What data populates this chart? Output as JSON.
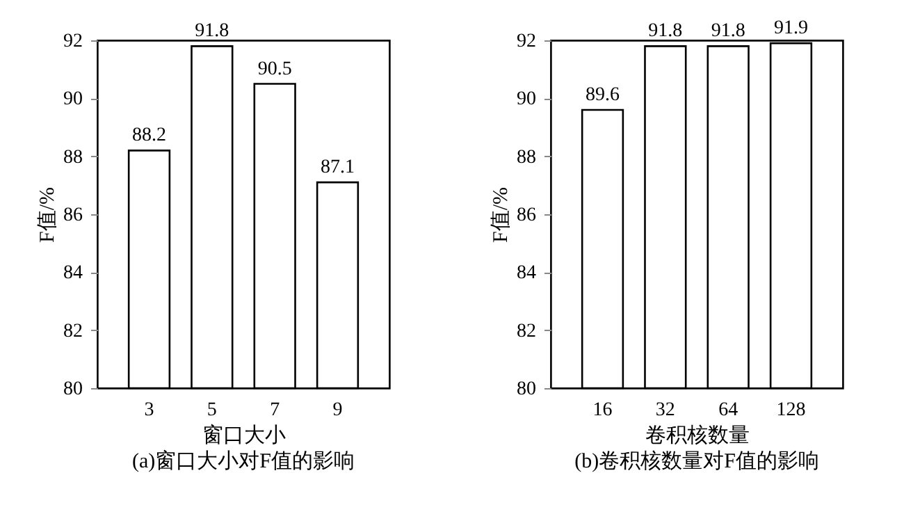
{
  "chart_data": [
    {
      "type": "bar",
      "categories": [
        "3",
        "5",
        "7",
        "9"
      ],
      "values": [
        88.2,
        91.8,
        90.5,
        87.1
      ],
      "color": "#ffffff",
      "ylim": [
        80,
        92
      ],
      "yticks": [
        80,
        82,
        84,
        86,
        88,
        90,
        92
      ],
      "xlabel": "窗口大小",
      "ylabel": "F值/%",
      "annotations": [
        "(a)窗口大小对F值的影响"
      ],
      "data_labels": true,
      "grid": false
    },
    {
      "type": "bar",
      "categories": [
        "16",
        "32",
        "64",
        "128"
      ],
      "values": [
        89.6,
        91.8,
        91.8,
        91.9
      ],
      "color": "#ffffff",
      "ylim": [
        80,
        92
      ],
      "yticks": [
        80,
        82,
        84,
        86,
        88,
        90,
        92
      ],
      "xlabel": "卷积核数量",
      "ylabel": "F值/%",
      "annotations": [
        "(b)卷积核数量对F值的影响"
      ],
      "data_labels": true,
      "grid": false
    }
  ]
}
